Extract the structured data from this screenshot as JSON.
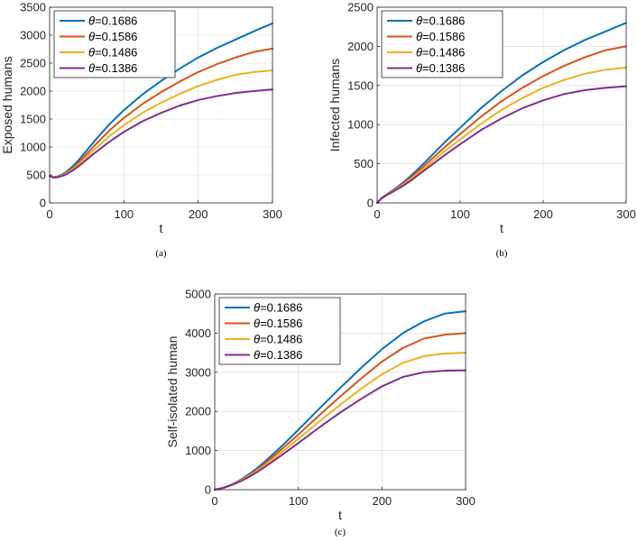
{
  "colors": {
    "theta_1686": "#0072bd",
    "theta_1586": "#d95319",
    "theta_1486": "#edb120",
    "theta_1386": "#7e2f8e",
    "grid": "#d9d9d9",
    "axis": "#262626"
  },
  "legend_symbol": "θ",
  "chart_data": [
    {
      "type": "line",
      "caption": "(a)",
      "xlabel": "t",
      "ylabel": "Exposed humans",
      "xlim": [
        0,
        300
      ],
      "ylim": [
        0,
        3500
      ],
      "xticks": [
        0,
        100,
        200,
        300
      ],
      "yticks": [
        0,
        500,
        1000,
        1500,
        2000,
        2500,
        3000,
        3500
      ],
      "grid": true,
      "legend_position": "top-left",
      "x": [
        0,
        5,
        10,
        20,
        30,
        40,
        50,
        60,
        80,
        100,
        125,
        150,
        175,
        200,
        225,
        250,
        275,
        300
      ],
      "series": [
        {
          "name": "=0.1686",
          "values": [
            480,
            462,
            470,
            530,
            640,
            780,
            940,
            1100,
            1400,
            1660,
            1940,
            2180,
            2400,
            2600,
            2770,
            2920,
            3070,
            3210
          ]
        },
        {
          "name": "=0.1586",
          "values": [
            480,
            460,
            465,
            515,
            610,
            735,
            875,
            1020,
            1290,
            1520,
            1770,
            1980,
            2170,
            2340,
            2480,
            2600,
            2700,
            2760
          ]
        },
        {
          "name": "=0.1486",
          "values": [
            480,
            458,
            460,
            505,
            590,
            700,
            825,
            950,
            1190,
            1390,
            1610,
            1790,
            1950,
            2090,
            2200,
            2290,
            2340,
            2370
          ]
        },
        {
          "name": "=0.1386",
          "values": [
            480,
            455,
            455,
            495,
            570,
            665,
            775,
            885,
            1090,
            1270,
            1460,
            1610,
            1740,
            1840,
            1910,
            1965,
            2000,
            2030
          ]
        }
      ]
    },
    {
      "type": "line",
      "caption": "(b)",
      "xlabel": "t",
      "ylabel": "Infected humans",
      "xlim": [
        0,
        300
      ],
      "ylim": [
        0,
        2500
      ],
      "xticks": [
        0,
        100,
        200,
        300
      ],
      "yticks": [
        0,
        500,
        1000,
        1500,
        2000,
        2500
      ],
      "grid": true,
      "legend_position": "top-left",
      "x": [
        0,
        5,
        10,
        20,
        30,
        40,
        50,
        60,
        80,
        100,
        125,
        150,
        175,
        200,
        225,
        250,
        275,
        300
      ],
      "series": [
        {
          "name": "=0.1686",
          "values": [
            0,
            60,
            100,
            170,
            250,
            340,
            440,
            545,
            760,
            960,
            1210,
            1430,
            1630,
            1800,
            1950,
            2080,
            2190,
            2300
          ]
        },
        {
          "name": "=0.1586",
          "values": [
            0,
            58,
            97,
            162,
            235,
            320,
            410,
            505,
            700,
            880,
            1100,
            1300,
            1470,
            1620,
            1750,
            1860,
            1950,
            2000
          ]
        },
        {
          "name": "=0.1486",
          "values": [
            0,
            57,
            94,
            155,
            222,
            300,
            385,
            470,
            650,
            810,
            1010,
            1190,
            1340,
            1470,
            1570,
            1650,
            1700,
            1730
          ]
        },
        {
          "name": "=0.1386",
          "values": [
            0,
            55,
            90,
            148,
            210,
            280,
            360,
            440,
            600,
            750,
            930,
            1080,
            1210,
            1310,
            1390,
            1440,
            1470,
            1490
          ]
        }
      ]
    },
    {
      "type": "line",
      "caption": "(c)",
      "xlabel": "t",
      "ylabel": "Self-isolated human",
      "xlim": [
        0,
        300
      ],
      "ylim": [
        0,
        5000
      ],
      "xticks": [
        0,
        100,
        200,
        300
      ],
      "yticks": [
        0,
        1000,
        2000,
        3000,
        4000,
        5000
      ],
      "grid": true,
      "legend_position": "top-left",
      "x": [
        0,
        10,
        20,
        30,
        40,
        50,
        60,
        80,
        100,
        125,
        150,
        175,
        200,
        225,
        250,
        275,
        300
      ],
      "series": [
        {
          "name": "=0.1686",
          "values": [
            0,
            50,
            130,
            240,
            380,
            540,
            720,
            1110,
            1530,
            2070,
            2600,
            3110,
            3590,
            4000,
            4300,
            4500,
            4560
          ]
        },
        {
          "name": "=0.1586",
          "values": [
            0,
            48,
            125,
            225,
            355,
            505,
            670,
            1030,
            1410,
            1900,
            2380,
            2840,
            3270,
            3620,
            3860,
            3960,
            4000
          ]
        },
        {
          "name": "=0.1486",
          "values": [
            0,
            46,
            120,
            215,
            335,
            470,
            625,
            950,
            1300,
            1740,
            2170,
            2580,
            2950,
            3240,
            3410,
            3480,
            3500
          ]
        },
        {
          "name": "=0.1386",
          "values": [
            0,
            44,
            115,
            205,
            315,
            440,
            580,
            880,
            1190,
            1590,
            1970,
            2320,
            2640,
            2880,
            3000,
            3040,
            3050
          ]
        }
      ]
    }
  ]
}
